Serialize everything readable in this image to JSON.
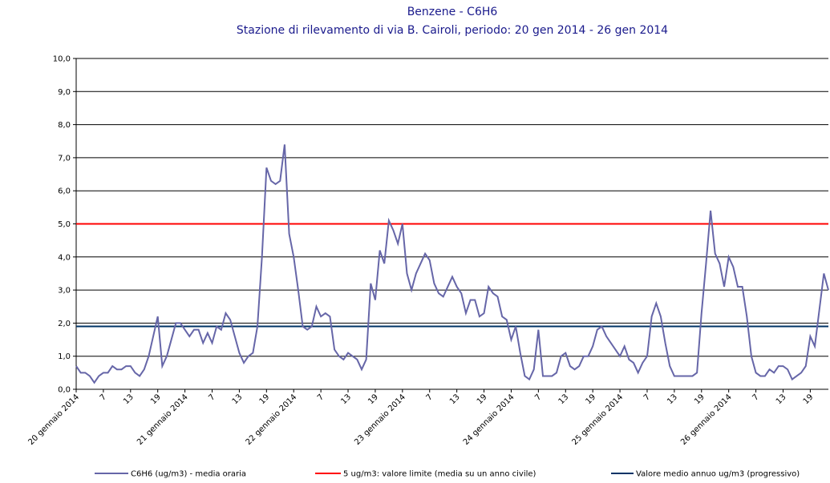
{
  "chart_data": {
    "type": "line",
    "title": "Benzene - C6H6",
    "subtitle": "Stazione di rilevamento di via B. Cairoli, periodo: 20 gen 2014 - 26 gen 2014",
    "categories": [
      "20 gennaio 2014",
      null,
      null,
      null,
      null,
      null,
      "7",
      null,
      null,
      null,
      null,
      null,
      "13",
      null,
      null,
      null,
      null,
      null,
      "19",
      null,
      null,
      null,
      null,
      null,
      "21 gennaio 2014",
      null,
      null,
      null,
      null,
      null,
      "7",
      null,
      null,
      null,
      null,
      null,
      "13",
      null,
      null,
      null,
      null,
      null,
      "19",
      null,
      null,
      null,
      null,
      null,
      "22 gennaio 2014",
      null,
      null,
      null,
      null,
      null,
      "7",
      null,
      null,
      null,
      null,
      null,
      "13",
      null,
      null,
      null,
      null,
      null,
      "19",
      null,
      null,
      null,
      null,
      null,
      "23 gennaio 2014",
      null,
      null,
      null,
      null,
      null,
      "7",
      null,
      null,
      null,
      null,
      null,
      "13",
      null,
      null,
      null,
      null,
      null,
      "19",
      null,
      null,
      null,
      null,
      null,
      "24 gennaio 2014",
      null,
      null,
      null,
      null,
      null,
      "7",
      null,
      null,
      null,
      null,
      null,
      "13",
      null,
      null,
      null,
      null,
      null,
      "19",
      null,
      null,
      null,
      null,
      null,
      "25 gennaio 2014",
      null,
      null,
      null,
      null,
      null,
      "7",
      null,
      null,
      null,
      null,
      null,
      "13",
      null,
      null,
      null,
      null,
      null,
      "19",
      null,
      null,
      null,
      null,
      null,
      "26 gennaio 2014",
      null,
      null,
      null,
      null,
      null,
      "7",
      null,
      null,
      null,
      null,
      null,
      "13",
      null,
      null,
      null,
      null,
      null,
      "19",
      null,
      null,
      null,
      null
    ],
    "series": [
      {
        "name": "C6H6 (ug/m3)  - media oraria",
        "color": "#6666a8",
        "values": [
          0.7,
          0.5,
          0.5,
          0.4,
          0.2,
          0.4,
          0.5,
          0.5,
          0.7,
          0.6,
          0.6,
          0.7,
          0.7,
          0.5,
          0.4,
          0.6,
          1.0,
          1.6,
          2.2,
          0.7,
          1.0,
          1.5,
          2.0,
          2.0,
          1.8,
          1.6,
          1.8,
          1.8,
          1.4,
          1.7,
          1.4,
          1.9,
          1.8,
          2.3,
          2.1,
          1.6,
          1.1,
          0.8,
          1.0,
          1.1,
          1.9,
          4.0,
          6.7,
          6.3,
          6.2,
          6.3,
          7.4,
          4.7,
          4.0,
          3.0,
          1.9,
          1.8,
          1.9,
          2.5,
          2.2,
          2.3,
          2.2,
          1.2,
          1.0,
          0.9,
          1.1,
          1.0,
          0.9,
          0.6,
          0.9,
          3.2,
          2.7,
          4.2,
          3.8,
          5.1,
          4.8,
          4.4,
          5.0,
          3.5,
          3.0,
          3.5,
          3.8,
          4.1,
          3.9,
          3.2,
          2.9,
          2.8,
          3.1,
          3.4,
          3.1,
          2.9,
          2.3,
          2.7,
          2.7,
          2.2,
          2.3,
          3.1,
          2.9,
          2.8,
          2.2,
          2.1,
          1.5,
          1.9,
          1.1,
          0.4,
          0.3,
          0.6,
          1.8,
          0.4,
          0.4,
          0.4,
          0.5,
          1.0,
          1.1,
          0.7,
          0.6,
          0.7,
          1.0,
          1.0,
          1.3,
          1.8,
          1.9,
          1.6,
          1.4,
          1.2,
          1.0,
          1.3,
          0.9,
          0.8,
          0.5,
          0.8,
          1.0,
          2.2,
          2.6,
          2.2,
          1.4,
          0.7,
          0.4,
          0.4,
          0.4,
          0.4,
          0.4,
          0.5,
          2.3,
          3.8,
          5.4,
          4.1,
          3.8,
          3.1,
          4.0,
          3.7,
          3.1,
          3.1,
          2.2,
          1.0,
          0.5,
          0.4,
          0.4,
          0.6,
          0.5,
          0.7,
          0.7,
          0.6,
          0.3,
          0.4,
          0.5,
          0.7,
          1.6,
          1.3,
          2.4,
          3.5,
          3.0
        ]
      }
    ],
    "reference_lines": [
      {
        "name": "5 ug/m3: valore limite (media su un anno civile)",
        "color": "#ff0000",
        "value": 5
      },
      {
        "name": "Valore medio annuo ug/m3 (progressivo)",
        "color": "#003366",
        "value": 1.9
      }
    ],
    "ylim": [
      0,
      10
    ],
    "yticks": [
      {
        "value": 0,
        "label": "0,0"
      },
      {
        "value": 1,
        "label": "1,0"
      },
      {
        "value": 2,
        "label": "2,0"
      },
      {
        "value": 3,
        "label": "3,0"
      },
      {
        "value": 4,
        "label": "4,0"
      },
      {
        "value": 5,
        "label": "5,0"
      },
      {
        "value": 6,
        "label": "6,0"
      },
      {
        "value": 7,
        "label": "7,0"
      },
      {
        "value": 8,
        "label": "8,0"
      },
      {
        "value": 9,
        "label": "9,0"
      },
      {
        "value": 10,
        "label": "10,0"
      }
    ],
    "grid": true
  }
}
